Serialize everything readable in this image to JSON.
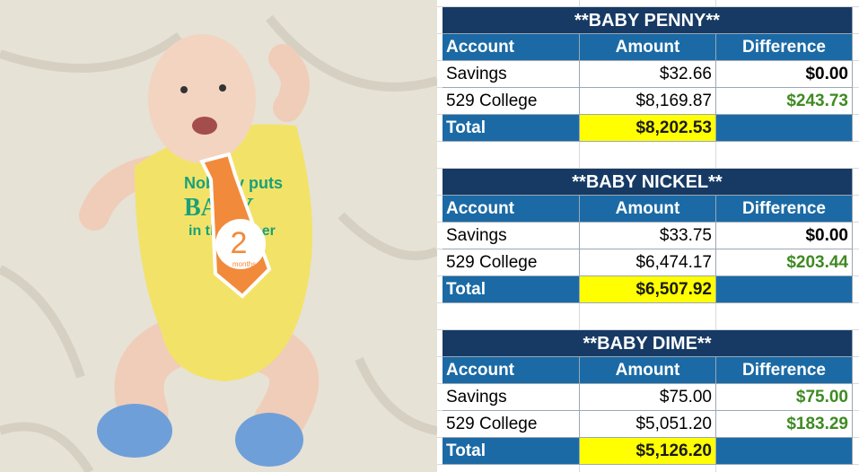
{
  "photo": {
    "onesie": [
      "Nobody puts",
      "BABY",
      "in the corner"
    ],
    "tie_number": "2",
    "tie_unit": "months"
  },
  "tables": [
    {
      "title": "**BABY PENNY**",
      "header": [
        "Account",
        "Amount",
        "Difference"
      ],
      "rows": [
        [
          "Savings",
          "$32.66",
          "$0.00"
        ],
        [
          "529 College",
          "$8,169.87",
          "$243.73"
        ]
      ],
      "total": [
        "Total",
        "$8,202.53"
      ]
    },
    {
      "title": "**BABY NICKEL**",
      "header": [
        "Account",
        "Amount",
        "Difference"
      ],
      "rows": [
        [
          "Savings",
          "$33.75",
          "$0.00"
        ],
        [
          "529 College",
          "$6,474.17",
          "$203.44"
        ]
      ],
      "total": [
        "Total",
        "$6,507.92"
      ]
    },
    {
      "title": "**BABY DIME**",
      "header": [
        "Account",
        "Amount",
        "Difference"
      ],
      "rows": [
        [
          "Savings",
          "$75.00",
          "$75.00"
        ],
        [
          "529 College",
          "$5,051.20",
          "$183.29"
        ]
      ],
      "total": [
        "Total",
        "$5,126.20"
      ]
    }
  ]
}
